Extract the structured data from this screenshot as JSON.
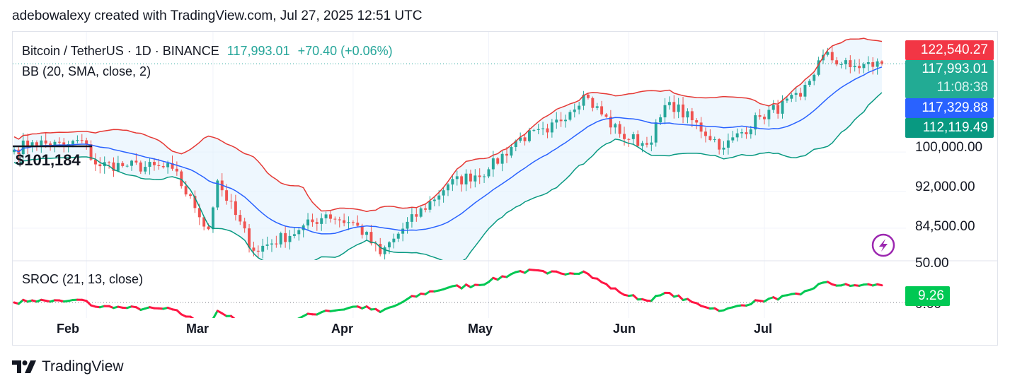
{
  "caption": "adebowalexy created with TradingView.com, Jul 27, 2025 12:51 UTC",
  "legend": {
    "symbol": "Bitcoin / TetherUS · 1D · BINANCE",
    "last": "117,993.01",
    "change": "+70.40 (+0.06%)",
    "bb": "BB (20, SMA, close, 2)",
    "sroc": "SROC (21, 13, close)"
  },
  "price_tags": {
    "upper": "122,540.27",
    "last": "117,993.01",
    "countdown": "11:08:38",
    "basis": "117,329.88",
    "lower": "112,119.49",
    "sroc": "9.26"
  },
  "axis_labels": {
    "p100k": "100,000.00",
    "p92k": "92,000.00",
    "p84k": "84,500.00",
    "s50": "50.00",
    "s0": "0.00"
  },
  "annotation": "$101,184",
  "months": [
    "Feb",
    "Mar",
    "Apr",
    "May",
    "Jun",
    "Jul"
  ],
  "footer": "TradingView",
  "colors": {
    "up": "#26a69a",
    "down": "#ef5350",
    "bb_upper": "#e53935",
    "bb_basis": "#2962ff",
    "bb_lower": "#089981",
    "bb_fill": "#e3f2fd",
    "sroc_up": "#00c853",
    "sroc_down": "#ff1744",
    "tag_red": "#f23645",
    "tag_green": "#22ab94",
    "tag_blue": "#2962ff",
    "tag_dkgreen": "#089981"
  },
  "chart_data": {
    "type": "candlestick",
    "symbol": "BTCUSDT",
    "interval": "1D",
    "x_start": "2025-01-16",
    "x_end": "2025-07-27",
    "ylim": [
      78000,
      124500
    ],
    "price_scale": [
      100000,
      92000,
      84500
    ],
    "last_price": 117993.01,
    "bb": {
      "period": 20,
      "upper": 122540.27,
      "basis": 117329.88,
      "lower": 112119.49
    },
    "horizontal_line": 101184,
    "close_keypoints": [
      [
        "2025-01-16",
        100500
      ],
      [
        "2025-01-20",
        102000
      ],
      [
        "2025-01-27",
        101200
      ],
      [
        "2025-01-31",
        102400
      ],
      [
        "2025-02-03",
        97500
      ],
      [
        "2025-02-10",
        97200
      ],
      [
        "2025-02-20",
        96600
      ],
      [
        "2025-02-25",
        88600
      ],
      [
        "2025-02-28",
        84300
      ],
      [
        "2025-03-02",
        94200
      ],
      [
        "2025-03-10",
        79900
      ],
      [
        "2025-03-20",
        84100
      ],
      [
        "2025-03-26",
        87300
      ],
      [
        "2025-04-02",
        85000
      ],
      [
        "2025-04-07",
        79200
      ],
      [
        "2025-04-12",
        84400
      ],
      [
        "2025-04-22",
        93400
      ],
      [
        "2025-05-01",
        96500
      ],
      [
        "2025-05-08",
        103000
      ],
      [
        "2025-05-14",
        104000
      ],
      [
        "2025-05-22",
        111700
      ],
      [
        "2025-05-30",
        103700
      ],
      [
        "2025-06-05",
        101500
      ],
      [
        "2025-06-10",
        110200
      ],
      [
        "2025-06-22",
        100900
      ],
      [
        "2025-06-30",
        107200
      ],
      [
        "2025-07-09",
        111300
      ],
      [
        "2025-07-14",
        119800
      ],
      [
        "2025-07-20",
        117300
      ],
      [
        "2025-07-27",
        117993
      ]
    ],
    "sroc": {
      "params": "21, 13, close",
      "last": 9.26,
      "ylim": [
        0,
        50
      ]
    }
  }
}
